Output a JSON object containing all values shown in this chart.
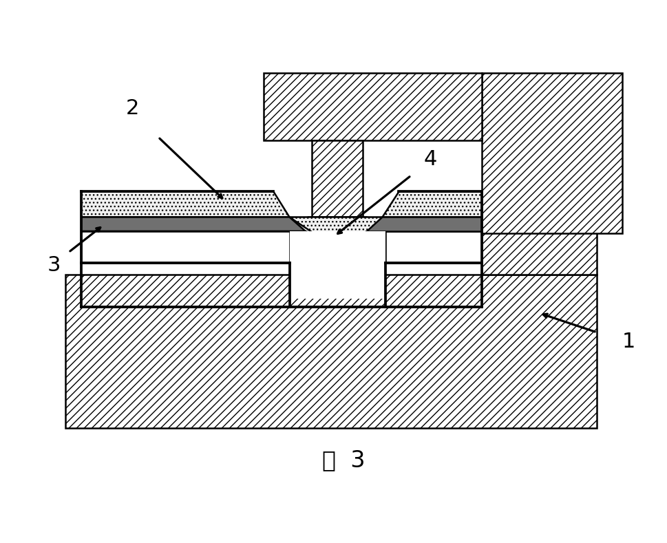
{
  "fig_label": "图  3",
  "bg_color": "#ffffff",
  "black": "#000000",
  "white": "#ffffff",
  "hatch_diag": "///",
  "hatch_dot": "...",
  "dot_fill": "#f0f0f0",
  "dark_fill": "#707070",
  "lw": 1.8,
  "label_1": "1",
  "label_2": "2",
  "label_3": "3",
  "label_4": "4"
}
